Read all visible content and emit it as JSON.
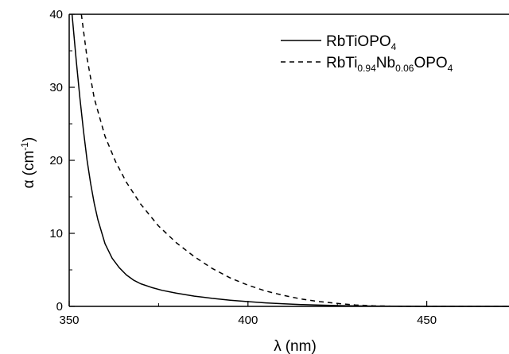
{
  "chart_data": {
    "type": "line",
    "xlabel": {
      "symbol": "λ",
      "unit": "(nm)"
    },
    "ylabel": {
      "symbol": "α",
      "unit_open": "(cm",
      "unit_sup": "-1",
      "unit_close": ")"
    },
    "xlim": [
      350,
      473
    ],
    "ylim": [
      0,
      40
    ],
    "x_ticks": [
      350,
      400,
      450
    ],
    "y_ticks": [
      0,
      10,
      20,
      30,
      40
    ],
    "grid": false,
    "legend_position": "top-right",
    "series": [
      {
        "name": "RbTiOPO4",
        "legend": [
          [
            "RbTiOPO",
            "n"
          ],
          [
            "4",
            "sub"
          ]
        ],
        "style": "solid",
        "color": "#000000",
        "x": [
          350.8,
          352,
          353,
          354,
          355,
          356,
          357,
          358,
          360,
          362,
          364,
          366,
          368,
          370,
          373,
          376,
          380,
          385,
          390,
          395,
          400,
          405,
          410,
          415,
          420,
          425,
          430,
          435,
          440,
          445,
          450,
          460,
          473
        ],
        "y": [
          40,
          33.5,
          28.5,
          24,
          20,
          16.8,
          14.1,
          11.9,
          8.6,
          6.6,
          5.3,
          4.3,
          3.6,
          3.1,
          2.6,
          2.2,
          1.8,
          1.4,
          1.1,
          0.85,
          0.65,
          0.48,
          0.35,
          0.25,
          0.17,
          0.11,
          0.07,
          0.04,
          0.02,
          0.01,
          0.0,
          0.0,
          0.0
        ]
      },
      {
        "name": "RbTi0.94Nb0.06OPO4",
        "legend": [
          [
            "RbTi",
            "n"
          ],
          [
            "0.94",
            "sub"
          ],
          [
            "Nb",
            "n"
          ],
          [
            "0.06",
            "sub"
          ],
          [
            "OPO",
            "n"
          ],
          [
            "4",
            "sub"
          ]
        ],
        "style": "dashed",
        "color": "#000000",
        "x": [
          353.4,
          355,
          357,
          360,
          363,
          366,
          370,
          375,
          380,
          385,
          390,
          395,
          400,
          405,
          410,
          415,
          420,
          425,
          430,
          435,
          440,
          445,
          450,
          460,
          473
        ],
        "y": [
          40,
          34,
          28.5,
          23.3,
          19.8,
          17.0,
          14.0,
          11.0,
          8.7,
          6.8,
          5.2,
          3.9,
          2.9,
          2.1,
          1.5,
          1.0,
          0.65,
          0.4,
          0.2,
          0.08,
          0.03,
          0.01,
          0.0,
          0.0,
          0.0
        ]
      }
    ]
  }
}
